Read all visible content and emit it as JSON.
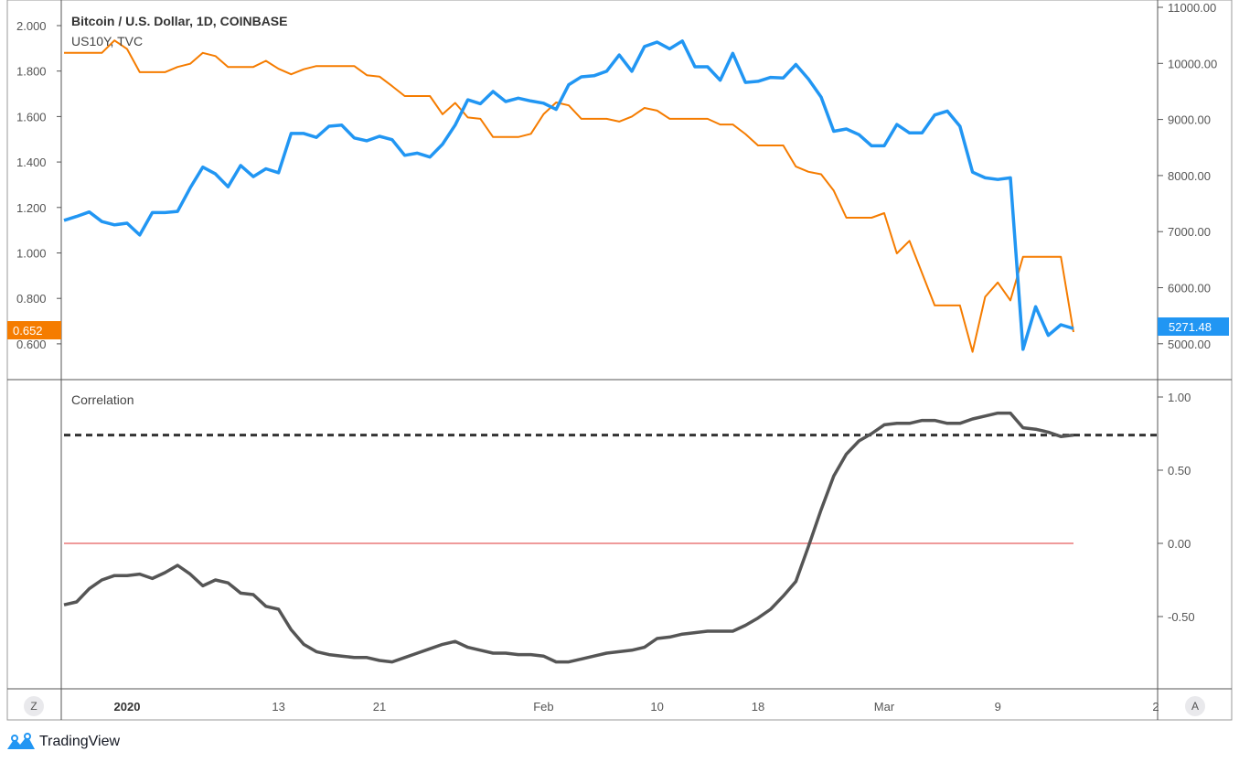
{
  "header": {
    "main_symbol": "Bitcoin / U.S. Dollar, 1D, COINBASE",
    "compare_symbol": "US10Y, TVC"
  },
  "indicator": {
    "title": "Correlation"
  },
  "price_labels": {
    "us10y_last": "0.652",
    "btc_last": "5271.48"
  },
  "buttons": {
    "left": "Z",
    "right": "A"
  },
  "watermark": {
    "text": "TradingView"
  },
  "colors": {
    "btc": "#2196f3",
    "us10y": "#f57c00",
    "correlation": "#555555",
    "zero_line": "#ef9a9a",
    "threshold_line": "#333333"
  },
  "chart_data": [
    {
      "type": "line",
      "title": "Bitcoin / U.S. Dollar, 1D, COINBASE",
      "x_ticks": [
        "2020",
        "13",
        "21",
        "Feb",
        "10",
        "18",
        "Mar",
        "9",
        "2"
      ],
      "left_axis": {
        "ticks": [
          "2.000",
          "1.800",
          "1.600",
          "1.400",
          "1.200",
          "1.000",
          "0.800",
          "0.600"
        ],
        "ylim": [
          0.5,
          2.0
        ]
      },
      "right_axis": {
        "ticks": [
          "11000.00",
          "10000.00",
          "9000.00",
          "8000.00",
          "7000.00",
          "6000.00",
          "5000.00"
        ],
        "ylim": [
          4800,
          11000
        ]
      },
      "series": [
        {
          "name": "Bitcoin / U.S. Dollar",
          "axis": "right",
          "values": [
            7200,
            7270,
            7350,
            7180,
            7120,
            7150,
            6940,
            7340,
            7340,
            7360,
            7780,
            8150,
            8030,
            7800,
            8180,
            7980,
            8120,
            8050,
            8750,
            8750,
            8680,
            8880,
            8900,
            8670,
            8620,
            8700,
            8640,
            8360,
            8400,
            8330,
            8560,
            8900,
            9350,
            9280,
            9500,
            9320,
            9380,
            9330,
            9290,
            9180,
            9620,
            9760,
            9780,
            9860,
            10150,
            9860,
            10300,
            10380,
            10260,
            10400,
            9940,
            9940,
            9700,
            10180,
            9660,
            9680,
            9750,
            9740,
            9980,
            9720,
            9400,
            8790,
            8830,
            8730,
            8530,
            8530,
            8910,
            8760,
            8760,
            9080,
            9150,
            8880,
            8060,
            7960,
            7930,
            7960,
            4900,
            5660,
            5150,
            5340,
            5271.48
          ]
        },
        {
          "name": "US10Y",
          "axis": "left",
          "values": [
            1.88,
            1.88,
            1.88,
            1.88,
            1.935,
            1.897,
            1.795,
            1.795,
            1.795,
            1.818,
            1.832,
            1.88,
            1.866,
            1.818,
            1.818,
            1.818,
            1.845,
            1.81,
            1.786,
            1.808,
            1.822,
            1.822,
            1.822,
            1.822,
            1.782,
            1.776,
            1.734,
            1.69,
            1.69,
            1.69,
            1.61,
            1.66,
            1.596,
            1.59,
            1.51,
            1.51,
            1.51,
            1.524,
            1.61,
            1.662,
            1.649,
            1.59,
            1.59,
            1.59,
            1.578,
            1.6,
            1.638,
            1.626,
            1.59,
            1.59,
            1.59,
            1.59,
            1.565,
            1.565,
            1.523,
            1.473,
            1.473,
            1.473,
            1.38,
            1.357,
            1.346,
            1.274,
            1.155,
            1.155,
            1.155,
            1.175,
            0.998,
            1.053,
            0.911,
            0.769,
            0.769,
            0.769,
            0.565,
            0.807,
            0.87,
            0.791,
            0.983,
            0.983,
            0.983,
            0.983,
            0.652
          ]
        }
      ]
    },
    {
      "type": "line",
      "title": "Correlation",
      "right_axis": {
        "ticks": [
          "1.00",
          "0.50",
          "0.00",
          "-0.50"
        ],
        "ylim": [
          -1.0,
          1.0
        ]
      },
      "series": [
        {
          "name": "Correlation",
          "values": [
            -0.42,
            -0.4,
            -0.31,
            -0.25,
            -0.22,
            -0.22,
            -0.21,
            -0.24,
            -0.2,
            -0.15,
            -0.21,
            -0.29,
            -0.25,
            -0.27,
            -0.34,
            -0.35,
            -0.43,
            -0.45,
            -0.59,
            -0.69,
            -0.74,
            -0.76,
            -0.77,
            -0.78,
            -0.78,
            -0.8,
            -0.81,
            -0.78,
            -0.75,
            -0.72,
            -0.69,
            -0.67,
            -0.71,
            -0.73,
            -0.75,
            -0.75,
            -0.76,
            -0.76,
            -0.77,
            -0.81,
            -0.81,
            -0.79,
            -0.77,
            -0.75,
            -0.74,
            -0.73,
            -0.71,
            -0.65,
            -0.64,
            -0.62,
            -0.61,
            -0.6,
            -0.6,
            -0.6,
            -0.56,
            -0.51,
            -0.45,
            -0.36,
            -0.26,
            -0.02,
            0.23,
            0.46,
            0.61,
            0.7,
            0.75,
            0.81,
            0.82,
            0.82,
            0.84,
            0.84,
            0.82,
            0.82,
            0.85,
            0.87,
            0.89,
            0.89,
            0.79,
            0.78,
            0.76,
            0.73,
            0.74
          ]
        }
      ],
      "reference_lines": [
        0.74,
        0.0
      ]
    }
  ]
}
